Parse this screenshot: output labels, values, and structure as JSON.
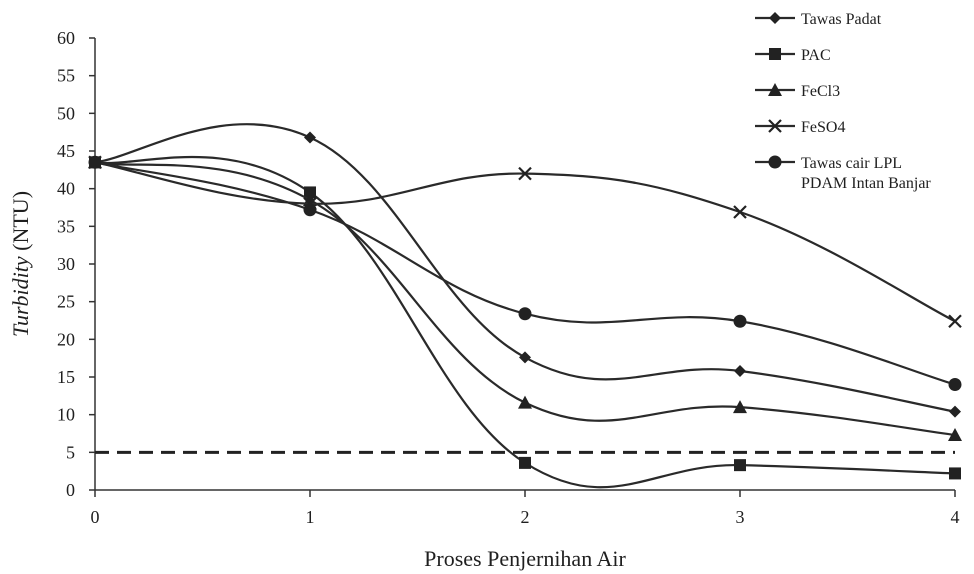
{
  "chart_data": {
    "type": "line",
    "smooth": true,
    "xlabel": "Proses Penjernihan Air",
    "ylabel_italic": "Turbidity",
    "ylabel_unit": " (NTU)",
    "x": [
      0,
      1,
      2,
      3,
      4
    ],
    "x_ticks": [
      "0",
      "1",
      "2",
      "3",
      "4"
    ],
    "ylim": [
      0,
      60
    ],
    "y_ticks": [
      "0",
      "5",
      "10",
      "15",
      "20",
      "25",
      "30",
      "35",
      "40",
      "45",
      "50",
      "55",
      "60"
    ],
    "grid": false,
    "legend_position": "top-right",
    "reference_line": {
      "y": 5,
      "style": "dashed"
    },
    "series": [
      {
        "name": "Tawas Padat",
        "marker": "diamond",
        "values": [
          43.5,
          46.8,
          17.6,
          15.8,
          10.4
        ]
      },
      {
        "name": "PAC",
        "marker": "square",
        "values": [
          43.5,
          39.5,
          3.6,
          3.3,
          2.2
        ]
      },
      {
        "name": "FeCl3",
        "marker": "triangle",
        "values": [
          43.5,
          38.5,
          11.6,
          11.0,
          7.3
        ]
      },
      {
        "name": "FeSO4",
        "marker": "cross",
        "values": [
          43.5,
          38.0,
          42.0,
          36.9,
          22.4
        ]
      },
      {
        "name": "Tawas cair LPL\nPDAM Intan Banjar",
        "marker": "circle",
        "values": [
          43.5,
          37.2,
          23.4,
          22.4,
          14.0
        ]
      }
    ]
  }
}
